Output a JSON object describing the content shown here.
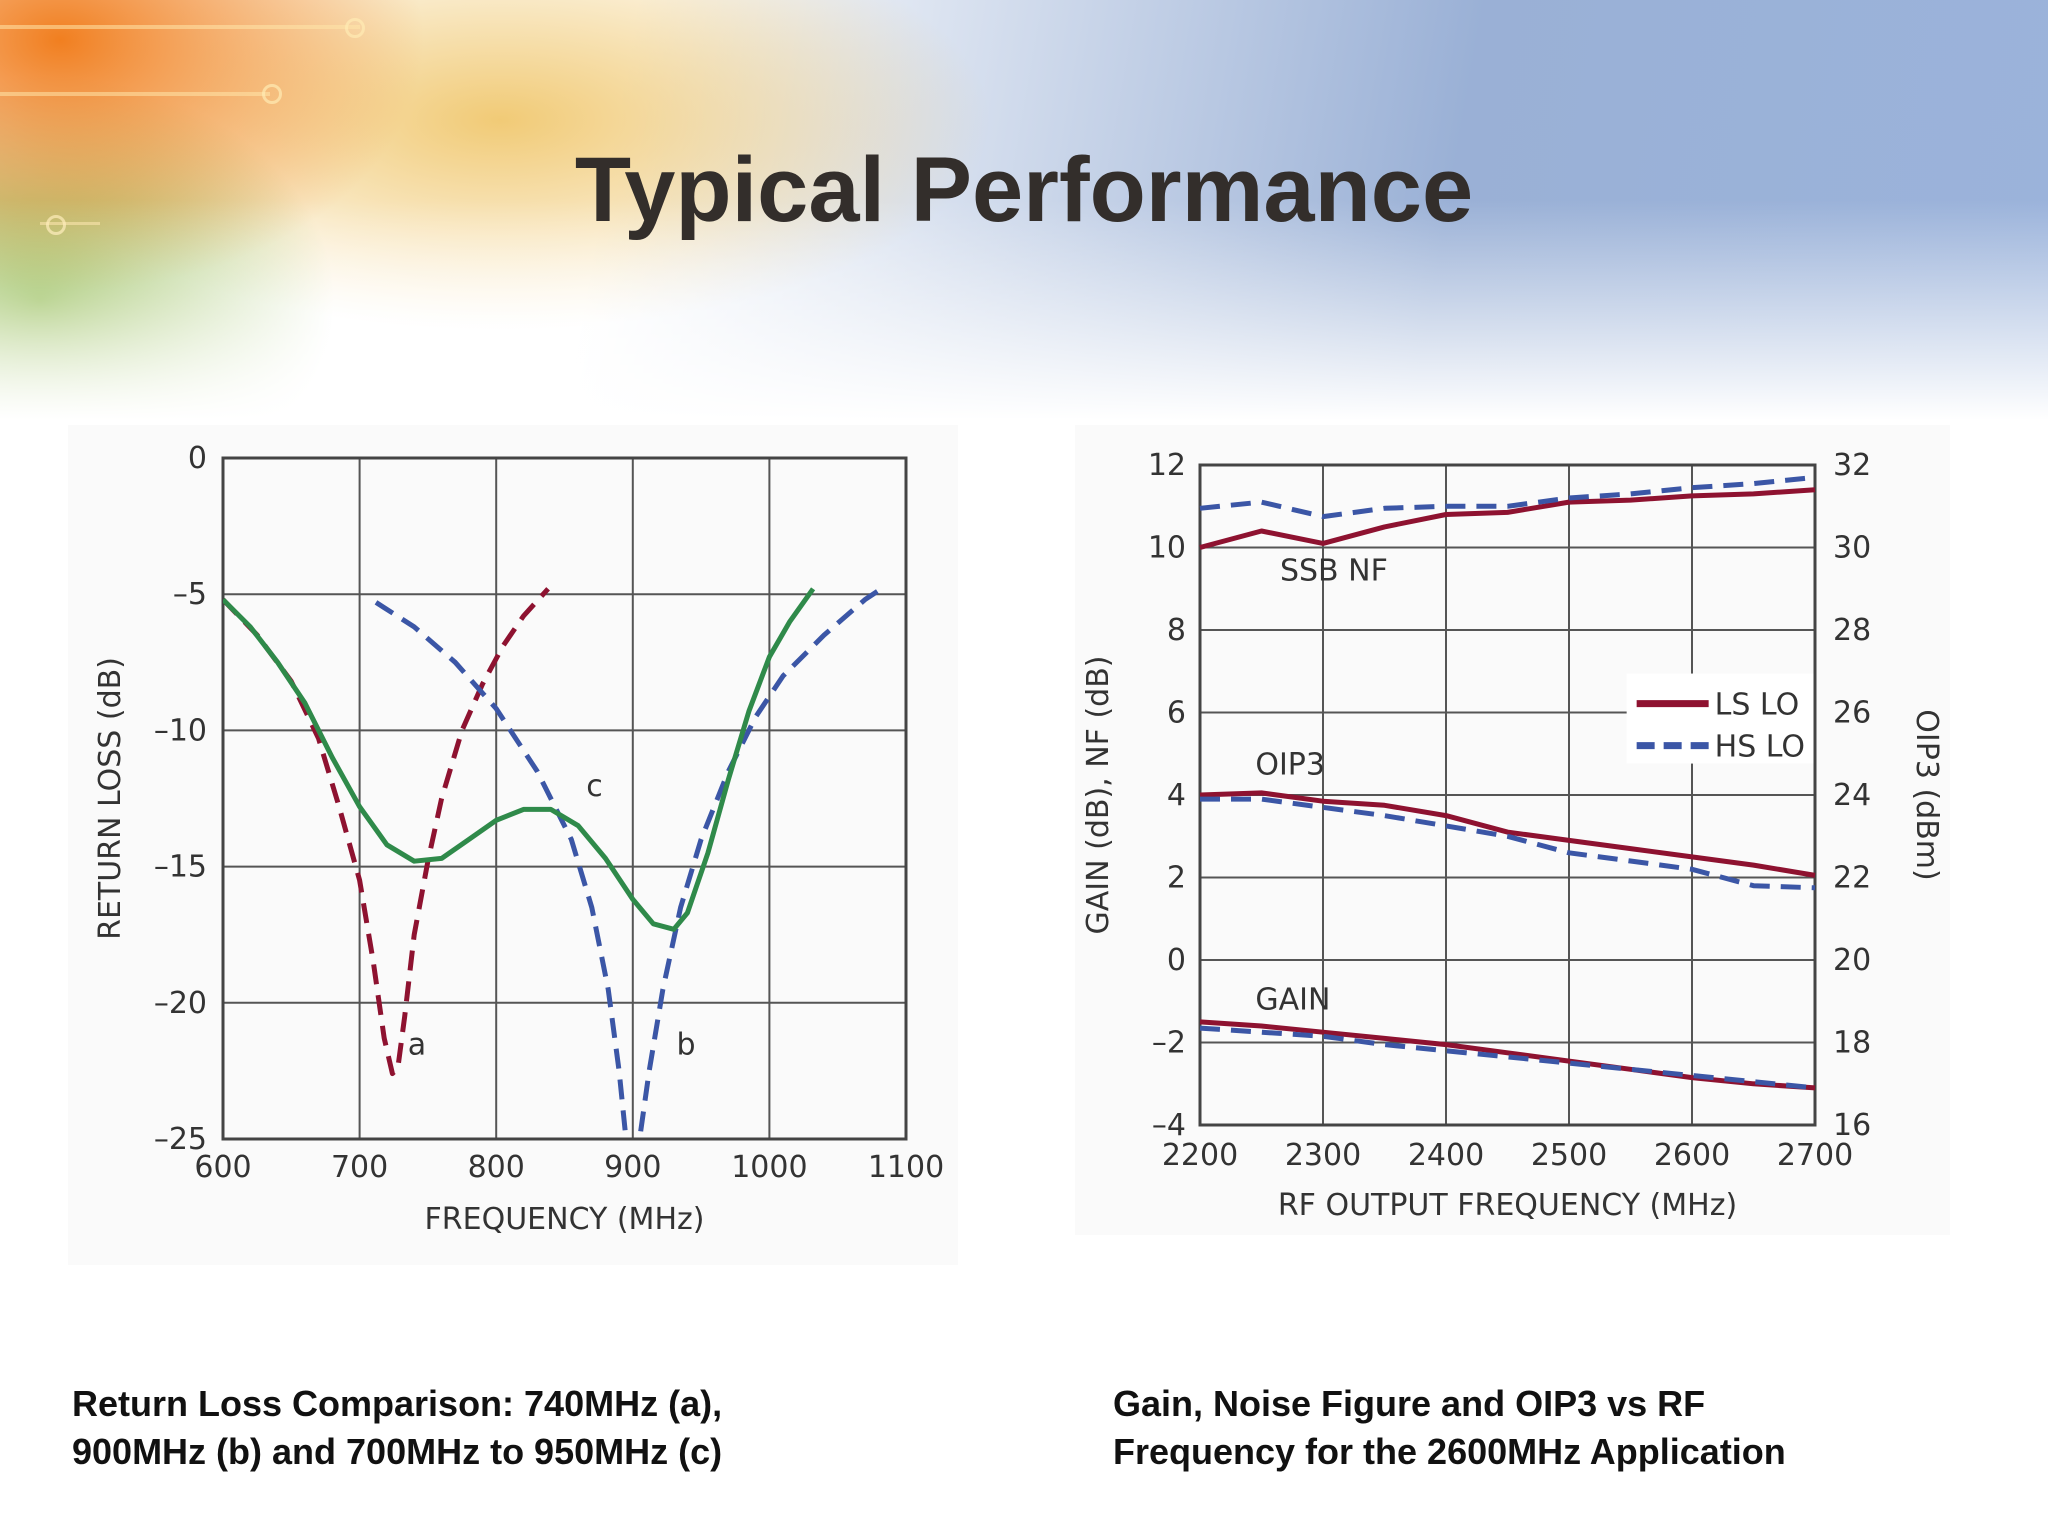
{
  "slide": {
    "title": "Typical Performance",
    "captions": {
      "left_line1": "Return Loss Comparison: 740MHz (a),",
      "left_line2": "900MHz (b) and 700MHz to 950MHz (c)",
      "right_line1": "Gain, Noise Figure and OIP3 vs RF",
      "right_line2": "Frequency for the 2600MHz Application"
    }
  },
  "colors": {
    "red": "#8e1230",
    "blue": "#3b56a6",
    "green": "#2f8a4a",
    "grid": "#555555"
  },
  "chart_data": [
    {
      "type": "line",
      "xlabel": "FREQUENCY (MHz)",
      "ylabel": "RETURN LOSS (dB)",
      "xlim": [
        600,
        1100
      ],
      "ylim": [
        -25,
        0
      ],
      "xticks": [
        600,
        700,
        800,
        900,
        1000,
        1100
      ],
      "yticks": [
        0,
        -5,
        -10,
        -15,
        -20,
        -25
      ],
      "ytick_labels": [
        "0",
        "–5",
        "–10",
        "–15",
        "–20",
        "–25"
      ],
      "grid": true,
      "series": [
        {
          "label": "a",
          "color": "#8e1230",
          "dash": true,
          "x": [
            600,
            625,
            650,
            670,
            685,
            700,
            710,
            718,
            724,
            728,
            733,
            740,
            750,
            760,
            775,
            790,
            805,
            820,
            838
          ],
          "y": [
            -5.2,
            -6.5,
            -8.2,
            -10.3,
            -12.8,
            -15.5,
            -18.5,
            -21.3,
            -22.6,
            -22.4,
            -20.5,
            -17.5,
            -14.8,
            -12.5,
            -10.0,
            -8.3,
            -6.9,
            -5.8,
            -4.8
          ]
        },
        {
          "label": "b",
          "color": "#3b56a6",
          "dash": true,
          "x": [
            712,
            740,
            770,
            800,
            830,
            855,
            870,
            882,
            890,
            895,
            897,
            903,
            905,
            912,
            922,
            935,
            950,
            970,
            990,
            1010,
            1040,
            1070,
            1085
          ],
          "y": [
            -5.3,
            -6.2,
            -7.5,
            -9.2,
            -11.5,
            -14.0,
            -16.5,
            -19.5,
            -22.5,
            -25.0,
            -25.3,
            -25.3,
            -25.0,
            -22.5,
            -19.5,
            -16.5,
            -14.0,
            -11.5,
            -9.5,
            -8.0,
            -6.5,
            -5.2,
            -4.7
          ]
        },
        {
          "label": "c",
          "color": "#2f8a4a",
          "dash": false,
          "x": [
            600,
            620,
            640,
            660,
            680,
            700,
            720,
            740,
            760,
            780,
            800,
            820,
            840,
            860,
            880,
            900,
            915,
            930,
            940,
            955,
            970,
            985,
            1000,
            1015,
            1032
          ],
          "y": [
            -5.2,
            -6.2,
            -7.5,
            -9.0,
            -11.0,
            -12.8,
            -14.2,
            -14.8,
            -14.7,
            -14.0,
            -13.3,
            -12.9,
            -12.9,
            -13.5,
            -14.7,
            -16.2,
            -17.1,
            -17.3,
            -16.7,
            -14.5,
            -11.8,
            -9.3,
            -7.3,
            -6.0,
            -4.8
          ]
        }
      ],
      "annotations": [
        {
          "text": "a",
          "x": 742,
          "y": -21.9
        },
        {
          "text": "b",
          "x": 939,
          "y": -21.9
        },
        {
          "text": "c",
          "x": 872,
          "y": -12.4
        }
      ]
    },
    {
      "type": "line",
      "xlabel": "RF OUTPUT FREQUENCY (MHz)",
      "ylabel": "GAIN (dB), NF (dB)",
      "y2label": "OIP3 (dBm)",
      "xlim": [
        2200,
        2700
      ],
      "ylim": [
        -4,
        12
      ],
      "y2lim": [
        16,
        32
      ],
      "xticks": [
        2200,
        2300,
        2400,
        2500,
        2600,
        2700
      ],
      "yticks": [
        12,
        10,
        8,
        6,
        4,
        2,
        0,
        -2,
        -4
      ],
      "ytick_labels": [
        "12",
        "10",
        "8",
        "6",
        "4",
        "2",
        "0",
        "–2",
        "–4"
      ],
      "y2ticks": [
        32,
        30,
        28,
        26,
        24,
        22,
        20,
        18,
        16
      ],
      "grid": true,
      "legend": {
        "placement": "center-right",
        "entries": [
          {
            "label": "LS LO",
            "color": "#8e1230",
            "dash": false
          },
          {
            "label": "HS LO",
            "color": "#3b56a6",
            "dash": true
          }
        ]
      },
      "groups": [
        {
          "label": "SSB NF",
          "label_x": 2265,
          "label_y": 9.2
        },
        {
          "label": "OIP3",
          "label_x": 2245,
          "label_y": 4.5
        },
        {
          "label": "GAIN",
          "label_x": 2245,
          "label_y": -1.2
        }
      ],
      "series": [
        {
          "name": "SSB NF LS LO",
          "color": "#8e1230",
          "dash": false,
          "x": [
            2200,
            2250,
            2300,
            2350,
            2400,
            2450,
            2500,
            2550,
            2600,
            2650,
            2700
          ],
          "y": [
            10.0,
            10.4,
            10.1,
            10.5,
            10.8,
            10.85,
            11.1,
            11.15,
            11.25,
            11.3,
            11.4
          ]
        },
        {
          "name": "SSB NF HS LO",
          "color": "#3b56a6",
          "dash": true,
          "x": [
            2200,
            2250,
            2300,
            2350,
            2400,
            2450,
            2500,
            2550,
            2600,
            2650,
            2700
          ],
          "y": [
            10.95,
            11.1,
            10.75,
            10.95,
            11.0,
            11.0,
            11.2,
            11.3,
            11.45,
            11.55,
            11.7
          ]
        },
        {
          "name": "OIP3 LS LO",
          "color": "#8e1230",
          "dash": false,
          "x": [
            2200,
            2250,
            2300,
            2350,
            2400,
            2450,
            2500,
            2550,
            2600,
            2650,
            2700
          ],
          "y": [
            4.0,
            4.05,
            3.85,
            3.75,
            3.5,
            3.1,
            2.9,
            2.7,
            2.5,
            2.3,
            2.05
          ]
        },
        {
          "name": "OIP3 HS LO",
          "color": "#3b56a6",
          "dash": true,
          "x": [
            2200,
            2250,
            2300,
            2350,
            2400,
            2450,
            2500,
            2550,
            2600,
            2650,
            2700
          ],
          "y": [
            3.9,
            3.9,
            3.7,
            3.5,
            3.25,
            3.0,
            2.6,
            2.4,
            2.2,
            1.8,
            1.75
          ]
        },
        {
          "name": "GAIN LS LO",
          "color": "#8e1230",
          "dash": false,
          "x": [
            2200,
            2250,
            2300,
            2350,
            2400,
            2450,
            2500,
            2550,
            2600,
            2650,
            2700
          ],
          "y": [
            -1.5,
            -1.6,
            -1.75,
            -1.9,
            -2.05,
            -2.25,
            -2.45,
            -2.65,
            -2.85,
            -3.0,
            -3.1
          ]
        },
        {
          "name": "GAIN HS LO",
          "color": "#3b56a6",
          "dash": true,
          "x": [
            2200,
            2250,
            2300,
            2350,
            2400,
            2450,
            2500,
            2550,
            2600,
            2650,
            2700
          ],
          "y": [
            -1.65,
            -1.75,
            -1.85,
            -2.05,
            -2.2,
            -2.35,
            -2.5,
            -2.65,
            -2.8,
            -2.95,
            -3.1
          ]
        }
      ]
    }
  ]
}
